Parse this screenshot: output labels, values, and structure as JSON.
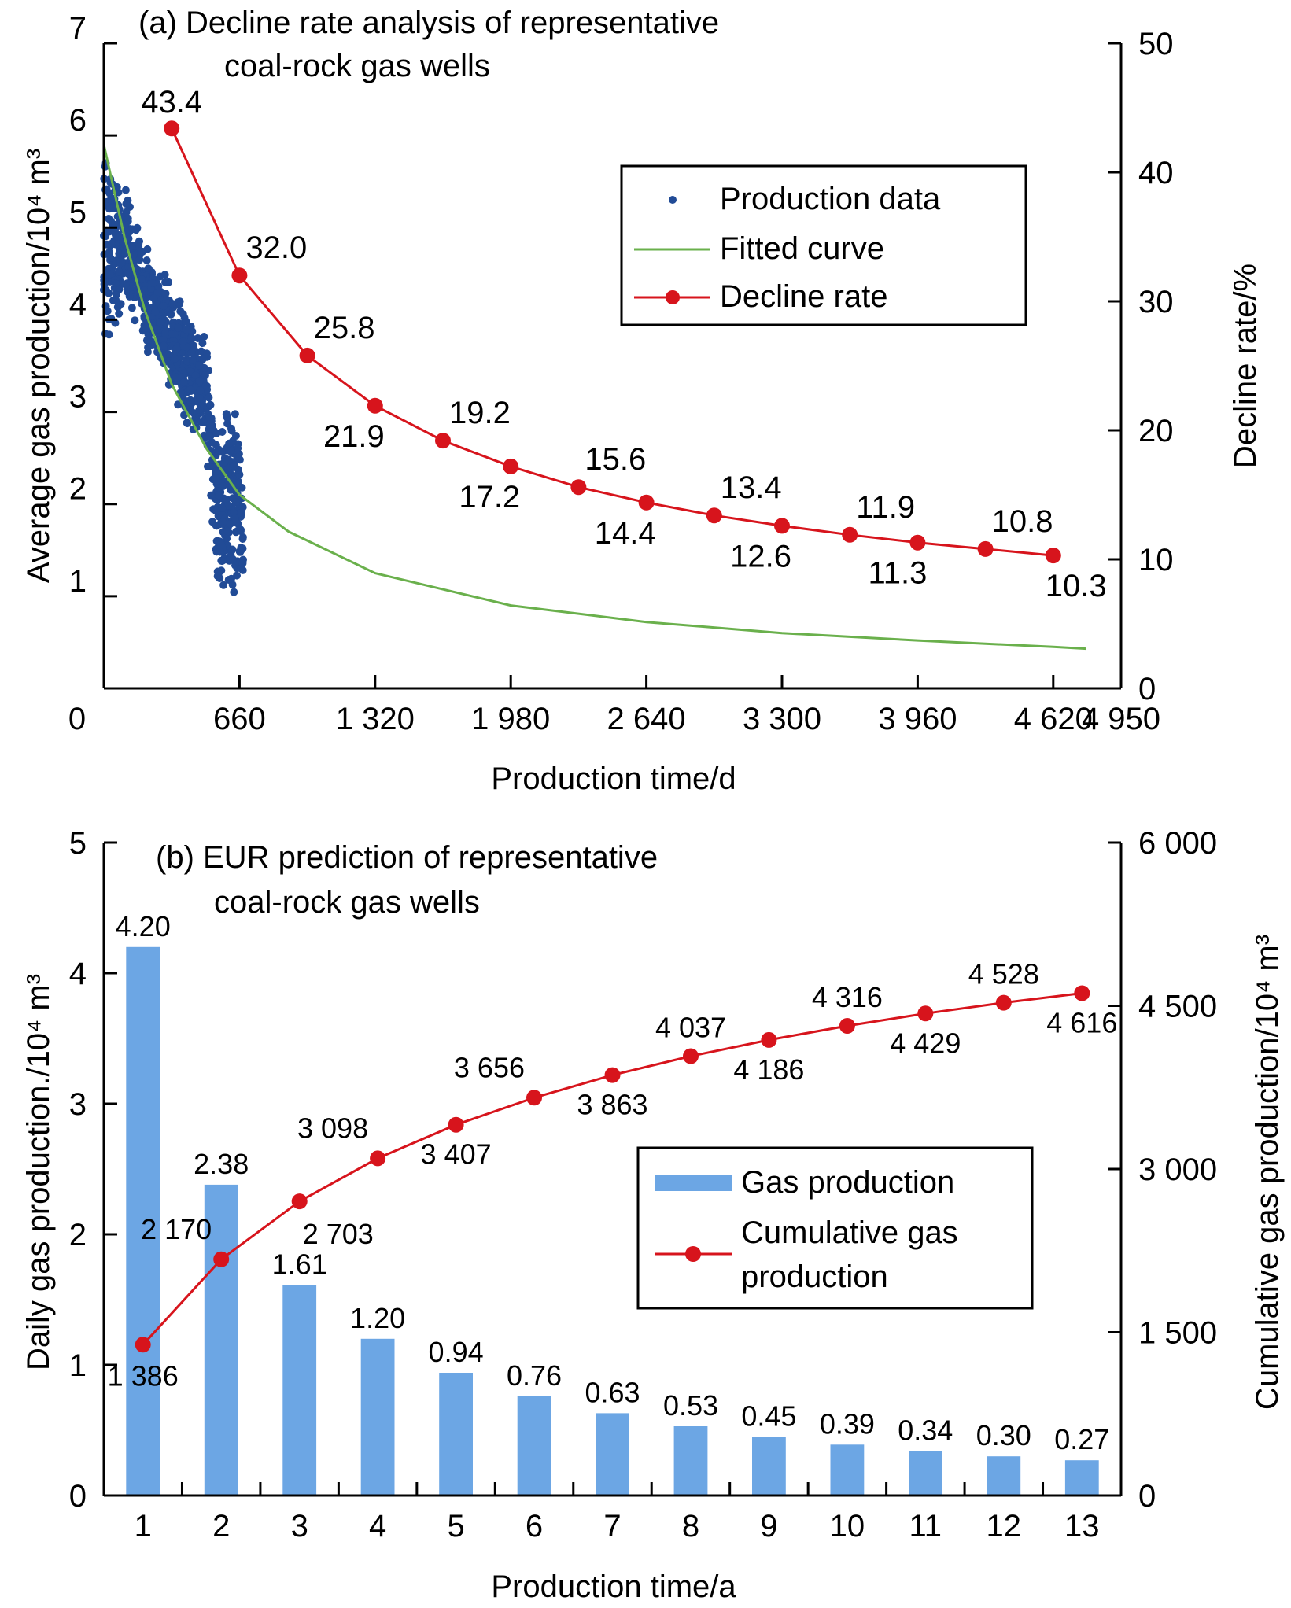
{
  "chart_data": [
    {
      "id": "a",
      "type": "scatter",
      "title_lines": [
        "(a) Decline rate analysis of representative",
        "coal-rock gas wells"
      ],
      "xlabel": "Production time/d",
      "ylabel": "Average gas production/10⁴ m³",
      "y2label": "Decline rate/%",
      "xlim": [
        0,
        4950
      ],
      "ylim": [
        0,
        7
      ],
      "y2lim": [
        0,
        50
      ],
      "x_ticks": [
        0,
        660,
        1320,
        1980,
        2640,
        3300,
        3960,
        4620,
        4950
      ],
      "x_tick_labels": [
        "0",
        "660",
        "1 320",
        "1 980",
        "2 640",
        "3 300",
        "3 960",
        "4 620",
        "4 950"
      ],
      "y_ticks": [
        1,
        2,
        3,
        4,
        5,
        6,
        7
      ],
      "y_tick_labels": [
        "1",
        "2",
        "3",
        "4",
        "5",
        "6",
        "7"
      ],
      "y2_ticks": [
        0,
        10,
        20,
        30,
        40,
        50
      ],
      "y2_tick_labels": [
        "0",
        "10",
        "20",
        "30",
        "40",
        "50"
      ],
      "legend": {
        "position": "top-right",
        "entries": [
          {
            "label": "Production data",
            "marker": "dot",
            "color": "#214b96"
          },
          {
            "label": "Fitted curve",
            "marker": "line",
            "color": "#6ab04c"
          },
          {
            "label": "Decline rate",
            "marker": "line-dot",
            "color": "#d7141c"
          }
        ]
      },
      "colors": {
        "production": "#214b96",
        "fitted": "#6ab04c",
        "decline": "#d7141c"
      },
      "series": [
        {
          "name": "Production data",
          "kind": "scatter-cloud",
          "approx_envelope": [
            {
              "x": 0,
              "ymin": 3.4,
              "ymax": 5.9
            },
            {
              "x": 100,
              "ymin": 4.2,
              "ymax": 5.5
            },
            {
              "x": 200,
              "ymin": 3.7,
              "ymax": 4.8
            },
            {
              "x": 300,
              "ymin": 3.3,
              "ymax": 4.6
            },
            {
              "x": 400,
              "ymin": 2.8,
              "ymax": 4.1
            },
            {
              "x": 500,
              "ymin": 2.5,
              "ymax": 3.8
            },
            {
              "x": 560,
              "ymin": 0.95,
              "ymax": 2.7
            },
            {
              "x": 620,
              "ymin": 0.95,
              "ymax": 3.3
            },
            {
              "x": 680,
              "ymin": 1.2,
              "ymax": 2.5
            }
          ]
        },
        {
          "name": "Fitted curve",
          "kind": "line",
          "x": [
            0,
            100,
            200,
            330,
            500,
            660,
            900,
            1320,
            1980,
            2640,
            3300,
            3960,
            4620,
            4780
          ],
          "y": [
            5.9,
            4.9,
            4.1,
            3.3,
            2.6,
            2.1,
            1.7,
            1.25,
            0.9,
            0.72,
            0.6,
            0.52,
            0.45,
            0.43
          ]
        },
        {
          "name": "Decline rate",
          "kind": "line-markers",
          "axis": "right",
          "x": [
            330,
            660,
            990,
            1320,
            1650,
            1980,
            2310,
            2640,
            2970,
            3300,
            3630,
            3960,
            4290,
            4620
          ],
          "y": [
            43.4,
            32.0,
            25.8,
            21.9,
            19.2,
            17.2,
            15.6,
            14.4,
            13.4,
            12.6,
            11.9,
            11.3,
            10.8,
            10.3
          ],
          "labels": [
            "43.4",
            "32.0",
            "25.8",
            "21.9",
            "19.2",
            "17.2",
            "15.6",
            "14.4",
            "13.4",
            "12.6",
            "11.9",
            "11.3",
            "10.8",
            "10.3"
          ],
          "label_side": [
            "above",
            "above-right",
            "above-right",
            "below",
            "above-right",
            "below",
            "above-right",
            "below",
            "above-right",
            "below",
            "above-right",
            "below",
            "above-right",
            "below-right"
          ]
        }
      ]
    },
    {
      "id": "b",
      "type": "bar",
      "title_lines": [
        "(b) EUR prediction of representative",
        "coal-rock gas wells"
      ],
      "xlabel": "Production time/a",
      "ylabel": "Daily gas production./10⁴ m³",
      "y2label": "Cumulative gas production/10⁴ m³",
      "categories": [
        "1",
        "2",
        "3",
        "4",
        "5",
        "6",
        "7",
        "8",
        "9",
        "10",
        "11",
        "12",
        "13"
      ],
      "ylim": [
        0,
        5
      ],
      "y2lim": [
        0,
        6000
      ],
      "y_ticks": [
        0,
        1,
        2,
        3,
        4,
        5
      ],
      "y_tick_labels": [
        "0",
        "1",
        "2",
        "3",
        "4",
        "5"
      ],
      "y2_ticks": [
        0,
        1500,
        3000,
        4500,
        6000
      ],
      "y2_tick_labels": [
        "0",
        "1 500",
        "3 000",
        "4 500",
        "6 000"
      ],
      "legend": {
        "position": "center-right",
        "entries": [
          {
            "label": "Gas production",
            "marker": "bar",
            "color": "#6ca6e4"
          },
          {
            "label_lines": [
              "Cumulative gas",
              "production"
            ],
            "marker": "line-dot",
            "color": "#d7141c"
          }
        ]
      },
      "colors": {
        "bar": "#6ca6e4",
        "cumulative": "#d7141c"
      },
      "series": [
        {
          "name": "Gas production",
          "axis": "left",
          "values": [
            4.2,
            2.38,
            1.61,
            1.2,
            0.94,
            0.76,
            0.63,
            0.53,
            0.45,
            0.39,
            0.34,
            0.3,
            0.27
          ],
          "labels": [
            "4.20",
            "2.38",
            "1.61",
            "1.20",
            "0.94",
            "0.76",
            "0.63",
            "0.53",
            "0.45",
            "0.39",
            "0.34",
            "0.30",
            "0.27"
          ]
        },
        {
          "name": "Cumulative gas production",
          "axis": "right",
          "values": [
            1386,
            2170,
            2703,
            3098,
            3407,
            3656,
            3863,
            4037,
            4186,
            4316,
            4429,
            4528,
            4616
          ],
          "labels": [
            "1 386",
            "2 170",
            "2 703",
            "3 098",
            "3 407",
            "3 656",
            "3 863",
            "4 037",
            "4 186",
            "4 316",
            "4 429",
            "4 528",
            "4 616"
          ],
          "label_side": [
            "below",
            "above-left",
            "below-right",
            "above-left",
            "below",
            "above-left",
            "below",
            "above",
            "below",
            "above",
            "below",
            "above",
            "below"
          ]
        }
      ]
    }
  ]
}
